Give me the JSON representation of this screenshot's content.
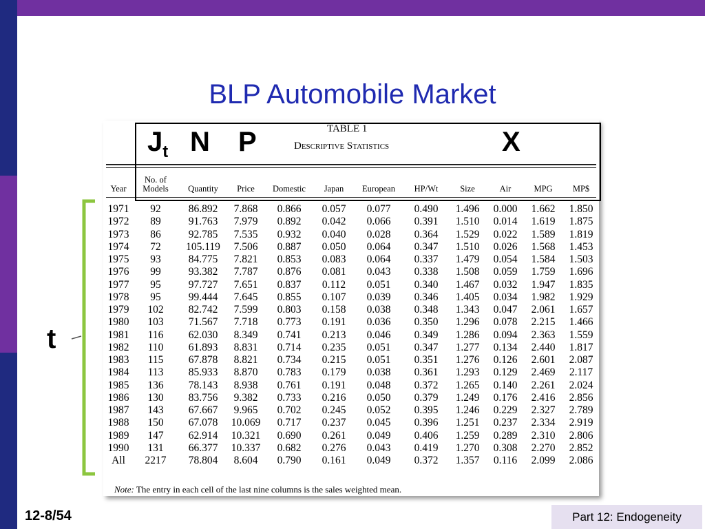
{
  "slide": {
    "title": "BLP Automobile Market",
    "page": "12-8/54",
    "footer": "Part 12: Endogeneity"
  },
  "annotations": {
    "jt": "J",
    "jt_sub": "t",
    "n": "N",
    "p": "P",
    "x": "X",
    "t": "t"
  },
  "table": {
    "caption": "TABLE 1",
    "subtitle": "Descriptive Statistics",
    "headers": [
      "Year",
      "No. of Models",
      "Quantity",
      "Price",
      "Domestic",
      "Japan",
      "European",
      "HP/Wt",
      "Size",
      "Air",
      "MPG",
      "MP$"
    ],
    "rows": [
      [
        "1971",
        "92",
        "86.892",
        "7.868",
        "0.866",
        "0.057",
        "0.077",
        "0.490",
        "1.496",
        "0.000",
        "1.662",
        "1.850"
      ],
      [
        "1972",
        "89",
        "91.763",
        "7.979",
        "0.892",
        "0.042",
        "0.066",
        "0.391",
        "1.510",
        "0.014",
        "1.619",
        "1.875"
      ],
      [
        "1973",
        "86",
        "92.785",
        "7.535",
        "0.932",
        "0.040",
        "0.028",
        "0.364",
        "1.529",
        "0.022",
        "1.589",
        "1.819"
      ],
      [
        "1974",
        "72",
        "105.119",
        "7.506",
        "0.887",
        "0.050",
        "0.064",
        "0.347",
        "1.510",
        "0.026",
        "1.568",
        "1.453"
      ],
      [
        "1975",
        "93",
        "84.775",
        "7.821",
        "0.853",
        "0.083",
        "0.064",
        "0.337",
        "1.479",
        "0.054",
        "1.584",
        "1.503"
      ],
      [
        "1976",
        "99",
        "93.382",
        "7.787",
        "0.876",
        "0.081",
        "0.043",
        "0.338",
        "1.508",
        "0.059",
        "1.759",
        "1.696"
      ],
      [
        "1977",
        "95",
        "97.727",
        "7.651",
        "0.837",
        "0.112",
        "0.051",
        "0.340",
        "1.467",
        "0.032",
        "1.947",
        "1.835"
      ],
      [
        "1978",
        "95",
        "99.444",
        "7.645",
        "0.855",
        "0.107",
        "0.039",
        "0.346",
        "1.405",
        "0.034",
        "1.982",
        "1.929"
      ],
      [
        "1979",
        "102",
        "82.742",
        "7.599",
        "0.803",
        "0.158",
        "0.038",
        "0.348",
        "1.343",
        "0.047",
        "2.061",
        "1.657"
      ],
      [
        "1980",
        "103",
        "71.567",
        "7.718",
        "0.773",
        "0.191",
        "0.036",
        "0.350",
        "1.296",
        "0.078",
        "2.215",
        "1.466"
      ],
      [
        "1981",
        "116",
        "62.030",
        "8.349",
        "0.741",
        "0.213",
        "0.046",
        "0.349",
        "1.286",
        "0.094",
        "2.363",
        "1.559"
      ],
      [
        "1982",
        "110",
        "61.893",
        "8.831",
        "0.714",
        "0.235",
        "0.051",
        "0.347",
        "1.277",
        "0.134",
        "2.440",
        "1.817"
      ],
      [
        "1983",
        "115",
        "67.878",
        "8.821",
        "0.734",
        "0.215",
        "0.051",
        "0.351",
        "1.276",
        "0.126",
        "2.601",
        "2.087"
      ],
      [
        "1984",
        "113",
        "85.933",
        "8.870",
        "0.783",
        "0.179",
        "0.038",
        "0.361",
        "1.293",
        "0.129",
        "2.469",
        "2.117"
      ],
      [
        "1985",
        "136",
        "78.143",
        "8.938",
        "0.761",
        "0.191",
        "0.048",
        "0.372",
        "1.265",
        "0.140",
        "2.261",
        "2.024"
      ],
      [
        "1986",
        "130",
        "83.756",
        "9.382",
        "0.733",
        "0.216",
        "0.050",
        "0.379",
        "1.249",
        "0.176",
        "2.416",
        "2.856"
      ],
      [
        "1987",
        "143",
        "67.667",
        "9.965",
        "0.702",
        "0.245",
        "0.052",
        "0.395",
        "1.246",
        "0.229",
        "2.327",
        "2.789"
      ],
      [
        "1988",
        "150",
        "67.078",
        "10.069",
        "0.717",
        "0.237",
        "0.045",
        "0.396",
        "1.251",
        "0.237",
        "2.334",
        "2.919"
      ],
      [
        "1989",
        "147",
        "62.914",
        "10.321",
        "0.690",
        "0.261",
        "0.049",
        "0.406",
        "1.259",
        "0.289",
        "2.310",
        "2.806"
      ],
      [
        "1990",
        "131",
        "66.377",
        "10.337",
        "0.682",
        "0.276",
        "0.043",
        "0.419",
        "1.270",
        "0.308",
        "2.270",
        "2.852"
      ],
      [
        "All",
        "2217",
        "78.804",
        "8.604",
        "0.790",
        "0.161",
        "0.049",
        "0.372",
        "1.357",
        "0.116",
        "2.099",
        "2.086"
      ]
    ],
    "note_label": "Note:",
    "note": "The entry in each cell of the last nine columns is the sales weighted mean."
  }
}
